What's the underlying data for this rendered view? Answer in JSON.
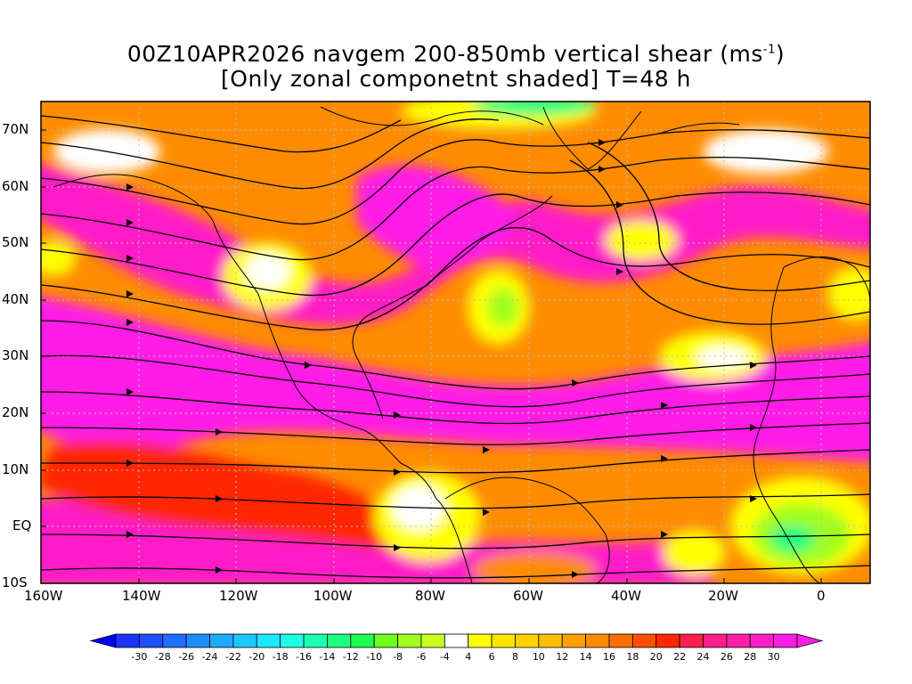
{
  "title": {
    "line1": "00Z10APR2026 navgem 200-850mb vertical shear (ms",
    "line1_unit_exp": "-1",
    "line1_end": ")",
    "line2": "[Only zonal componetnt shaded] T=48 h"
  },
  "map": {
    "lon_range": [
      -160,
      10
    ],
    "lat_range": [
      -10,
      75
    ],
    "lat_ticks": [
      {
        "value": 70,
        "label": "70N"
      },
      {
        "value": 60,
        "label": "60N"
      },
      {
        "value": 50,
        "label": "50N"
      },
      {
        "value": 40,
        "label": "40N"
      },
      {
        "value": 30,
        "label": "30N"
      },
      {
        "value": 20,
        "label": "20N"
      },
      {
        "value": 10,
        "label": "10N"
      },
      {
        "value": 0,
        "label": "EQ"
      },
      {
        "value": -10,
        "label": "10S"
      }
    ],
    "lon_ticks": [
      {
        "value": -160,
        "label": "160W"
      },
      {
        "value": -140,
        "label": "140W"
      },
      {
        "value": -120,
        "label": "120W"
      },
      {
        "value": -100,
        "label": "100W"
      },
      {
        "value": -80,
        "label": "80W"
      },
      {
        "value": -60,
        "label": "60W"
      },
      {
        "value": -40,
        "label": "40W"
      },
      {
        "value": -20,
        "label": "20W"
      },
      {
        "value": 0,
        "label": "0"
      }
    ]
  },
  "colorbar": {
    "labels": [
      "-30",
      "-28",
      "-26",
      "-24",
      "-22",
      "-20",
      "-18",
      "-16",
      "-14",
      "-12",
      "-10",
      "-8",
      "-6",
      "-4",
      "4",
      "6",
      "8",
      "10",
      "12",
      "14",
      "16",
      "18",
      "20",
      "22",
      "24",
      "26",
      "28",
      "30"
    ],
    "colors": [
      "#1e32ff",
      "#1e50ff",
      "#1e6eff",
      "#1e8cff",
      "#1eaaff",
      "#1ec8ff",
      "#1ee6ff",
      "#1effe6",
      "#1effb4",
      "#1eff82",
      "#1eff50",
      "#6eff1e",
      "#a0ff1e",
      "#c8ff1e",
      "#ffffff",
      "#ffff00",
      "#ffe600",
      "#ffd200",
      "#ffbe00",
      "#ffa000",
      "#ff8c00",
      "#ff6e00",
      "#ff5000",
      "#ff2800",
      "#ff1e50",
      "#ff1e8c",
      "#ff1eaa",
      "#ff1ec8",
      "#ff1ee6"
    ]
  }
}
